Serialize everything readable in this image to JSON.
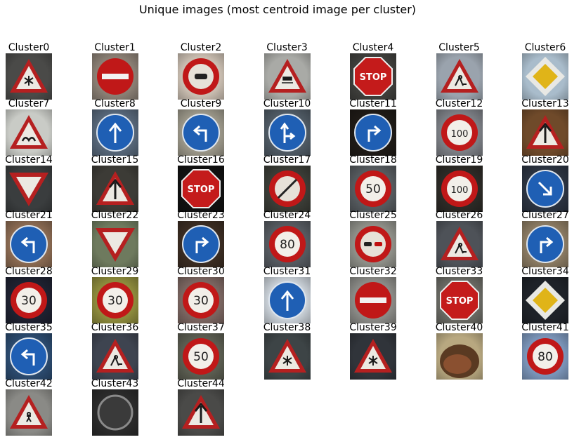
{
  "figure": {
    "title": "Unique images (most centroid image per cluster)"
  },
  "clusters": [
    {
      "label": "Cluster0",
      "sign": "tri-warn",
      "glyph": "snow",
      "bg": "#4a4a48",
      "light": false
    },
    {
      "label": "Cluster1",
      "sign": "no-entry",
      "glyph": "",
      "bg": "#8a7f74",
      "light": false
    },
    {
      "label": "Cluster2",
      "sign": "prohib",
      "glyph": "car",
      "bg": "#c9bdb0",
      "light": true
    },
    {
      "label": "Cluster3",
      "sign": "tri-warn",
      "glyph": "skid",
      "bg": "#a9aaa6",
      "light": true
    },
    {
      "label": "Cluster4",
      "sign": "stop",
      "glyph": "STOP",
      "bg": "#3f3f3c",
      "light": false
    },
    {
      "label": "Cluster5",
      "sign": "tri-warn",
      "glyph": "work",
      "bg": "#9aa3ad",
      "light": true
    },
    {
      "label": "Cluster6",
      "sign": "priority",
      "glyph": "",
      "bg": "#a9bccb",
      "light": true
    },
    {
      "label": "Cluster7",
      "sign": "tri-warn",
      "glyph": "bump",
      "bg": "#c9cbc6",
      "light": true
    },
    {
      "label": "Cluster8",
      "sign": "blue-circle",
      "glyph": "up",
      "bg": "#566678",
      "light": false
    },
    {
      "label": "Cluster9",
      "sign": "blue-circle",
      "glyph": "left",
      "bg": "#9a9688",
      "light": true
    },
    {
      "label": "Cluster10",
      "sign": "blue-circle",
      "glyph": "straight-right",
      "bg": "#4f5a64",
      "light": false
    },
    {
      "label": "Cluster11",
      "sign": "blue-circle",
      "glyph": "right",
      "bg": "#1e1a16",
      "light": false
    },
    {
      "label": "Cluster12",
      "sign": "speed",
      "glyph": "100",
      "bg": "#7b7e84",
      "light": false
    },
    {
      "label": "Cluster13",
      "sign": "tri-warn",
      "glyph": "up",
      "bg": "#6f4a2a",
      "light": false
    },
    {
      "label": "Cluster14",
      "sign": "yield",
      "glyph": "",
      "bg": "#3a3d3e",
      "light": false
    },
    {
      "label": "Cluster15",
      "sign": "tri-warn",
      "glyph": "up",
      "bg": "#3c3b36",
      "light": false
    },
    {
      "label": "Cluster16",
      "sign": "stop",
      "glyph": "STOP",
      "bg": "#111111",
      "light": false
    },
    {
      "label": "Cluster17",
      "sign": "prohib",
      "glyph": "slash",
      "bg": "#3a3c36",
      "light": false
    },
    {
      "label": "Cluster18",
      "sign": "speed",
      "glyph": "50",
      "bg": "#555a5e",
      "light": false
    },
    {
      "label": "Cluster19",
      "sign": "speed",
      "glyph": "100",
      "bg": "#2c2a26",
      "light": false
    },
    {
      "label": "Cluster20",
      "sign": "blue-circle",
      "glyph": "down-right",
      "bg": "#2b3340",
      "light": false
    },
    {
      "label": "Cluster21",
      "sign": "blue-circle",
      "glyph": "left",
      "bg": "#8a6a52",
      "light": false
    },
    {
      "label": "Cluster22",
      "sign": "yield",
      "glyph": "",
      "bg": "#6e7a5e",
      "light": false
    },
    {
      "label": "Cluster23",
      "sign": "blue-circle",
      "glyph": "right",
      "bg": "#3a2c22",
      "light": false
    },
    {
      "label": "Cluster24",
      "sign": "speed",
      "glyph": "80",
      "bg": "#555a60",
      "light": false
    },
    {
      "label": "Cluster25",
      "sign": "prohib",
      "glyph": "cars",
      "bg": "#8e8f88",
      "light": true
    },
    {
      "label": "Cluster26",
      "sign": "tri-warn",
      "glyph": "work",
      "bg": "#4e5258",
      "light": false
    },
    {
      "label": "Cluster27",
      "sign": "blue-circle",
      "glyph": "right",
      "bg": "#8a7a62",
      "light": false
    },
    {
      "label": "Cluster28",
      "sign": "speed",
      "glyph": "30",
      "bg": "#1e2130",
      "light": false
    },
    {
      "label": "Cluster29",
      "sign": "speed",
      "glyph": "30",
      "bg": "#8c8a3c",
      "light": true
    },
    {
      "label": "Cluster30",
      "sign": "speed",
      "glyph": "30",
      "bg": "#7a6560",
      "light": false
    },
    {
      "label": "Cluster31",
      "sign": "blue-circle",
      "glyph": "up",
      "bg": "#c8cfd6",
      "light": true
    },
    {
      "label": "Cluster32",
      "sign": "no-entry",
      "glyph": "",
      "bg": "#8a8a86",
      "light": true
    },
    {
      "label": "Cluster33",
      "sign": "stop",
      "glyph": "STOP",
      "bg": "#6a6a64",
      "light": false
    },
    {
      "label": "Cluster34",
      "sign": "priority",
      "glyph": "",
      "bg": "#1e2228",
      "light": false
    },
    {
      "label": "Cluster35",
      "sign": "blue-circle",
      "glyph": "left",
      "bg": "#2b4a6e",
      "light": false
    },
    {
      "label": "Cluster36",
      "sign": "tri-warn",
      "glyph": "work",
      "bg": "#3e4450",
      "light": false
    },
    {
      "label": "Cluster37",
      "sign": "speed",
      "glyph": "50",
      "bg": "#5a5c50",
      "light": false
    },
    {
      "label": "Cluster38",
      "sign": "tri-warn",
      "glyph": "snow",
      "bg": "#3d4446",
      "light": false
    },
    {
      "label": "Cluster39",
      "sign": "tri-warn",
      "glyph": "snow",
      "bg": "#30343a",
      "light": false
    },
    {
      "label": "Cluster40",
      "sign": "blur",
      "glyph": "",
      "bg": "#b8a880",
      "light": true
    },
    {
      "label": "Cluster41",
      "sign": "speed",
      "glyph": "80",
      "bg": "#7a94b8",
      "light": true
    },
    {
      "label": "Cluster42",
      "sign": "tri-warn",
      "glyph": "ped",
      "bg": "#8a8a86",
      "light": true
    },
    {
      "label": "Cluster43",
      "sign": "end-limit",
      "glyph": "",
      "bg": "#2a2a2a",
      "light": false
    },
    {
      "label": "Cluster44",
      "sign": "tri-warn",
      "glyph": "up",
      "bg": "#4a4a48",
      "light": false
    }
  ]
}
